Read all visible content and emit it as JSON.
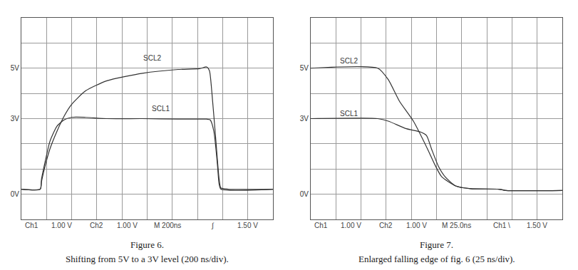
{
  "chart_data": [
    {
      "type": "line",
      "title": "Figure 6.",
      "subtitle": "Shifting from 5V to a 3V level (200 ns/div).",
      "status_line": [
        "Ch1",
        "1.00 V",
        "Ch2",
        "1.00 V",
        "M 200ns",
        "∫",
        "1.50 V"
      ],
      "xlim": [
        0,
        2000
      ],
      "xticks": [],
      "ylim": [
        -1,
        7
      ],
      "yticks": [
        {
          "value": 5,
          "label": "5V"
        },
        {
          "value": 3,
          "label": "3V"
        },
        {
          "value": 0,
          "label": "0V"
        }
      ],
      "tick_labels": "y",
      "grid": true,
      "line_style": "solid",
      "series": [
        {
          "name": "SCL2",
          "color": "#333333",
          "x": [
            0,
            150,
            160,
            198,
            227,
            283,
            340,
            397,
            510,
            680,
            963,
            1246,
            1416,
            1473,
            1495,
            1515,
            1545,
            1572,
            1586,
            1643,
            2000
          ],
          "values": [
            0.2,
            0.2,
            0.5,
            1.3,
            1.8,
            2.5,
            3.1,
            3.55,
            4.1,
            4.5,
            4.8,
            4.95,
            4.98,
            5.05,
            4.9,
            4.0,
            2.2,
            0.6,
            0.25,
            0.2,
            0.2
          ]
        },
        {
          "name": "SCL1",
          "color": "#333333",
          "x": [
            0,
            150,
            160,
            198,
            227,
            283,
            340,
            397,
            510,
            680,
            963,
            1246,
            1473,
            1501,
            1530,
            1558,
            1572,
            1586,
            2000
          ],
          "values": [
            0.2,
            0.2,
            0.6,
            1.5,
            2.1,
            2.7,
            2.95,
            3.05,
            3.05,
            3.0,
            3.0,
            2.98,
            2.98,
            2.95,
            2.5,
            1.2,
            0.4,
            0.2,
            0.2
          ]
        }
      ],
      "annotations": [
        {
          "text": "SCL2",
          "x": 1037,
          "y": 5.4
        },
        {
          "text": "SCL1",
          "x": 1105,
          "y": 3.4
        }
      ]
    },
    {
      "type": "line",
      "title": "Figure 7.",
      "subtitle": "Enlarged falling edge of fig. 6 (25 ns/div).",
      "status_line": [
        "Ch1",
        "1.00 V",
        "Ch2",
        "1.00 V",
        "M 25.0ns",
        "Ch1 \\",
        "1.50 V"
      ],
      "xlim": [
        0,
        250
      ],
      "xticks": [],
      "ylim": [
        -1,
        7
      ],
      "yticks": [
        {
          "value": 5,
          "label": "5V"
        },
        {
          "value": 3,
          "label": "3V"
        },
        {
          "value": 0,
          "label": "0V"
        }
      ],
      "tick_labels": "y",
      "grid": true,
      "line_style": "solid",
      "series": [
        {
          "name": "SCL2",
          "color": "#333333",
          "x": [
            0,
            66.6,
            77,
            88,
            102,
            116,
            123,
            130,
            144,
            159,
            187,
            194,
            250
          ],
          "values": [
            5.0,
            5.0,
            4.55,
            3.7,
            2.9,
            1.8,
            1.2,
            0.7,
            0.33,
            0.22,
            0.2,
            0.15,
            0.15
          ]
        },
        {
          "name": "SCL1",
          "color": "#333333",
          "x": [
            0,
            66.6,
            77,
            95,
            109,
            115,
            120,
            127,
            134,
            144,
            159,
            187,
            194,
            250
          ],
          "values": [
            3.0,
            3.0,
            2.9,
            2.6,
            2.47,
            2.33,
            1.8,
            1.1,
            0.67,
            0.33,
            0.22,
            0.2,
            0.15,
            0.15
          ]
        }
      ],
      "annotations": [
        {
          "text": "SCL2",
          "x": 38,
          "y": 5.3
        },
        {
          "text": "SCL1",
          "x": 38,
          "y": 3.2
        }
      ]
    }
  ]
}
